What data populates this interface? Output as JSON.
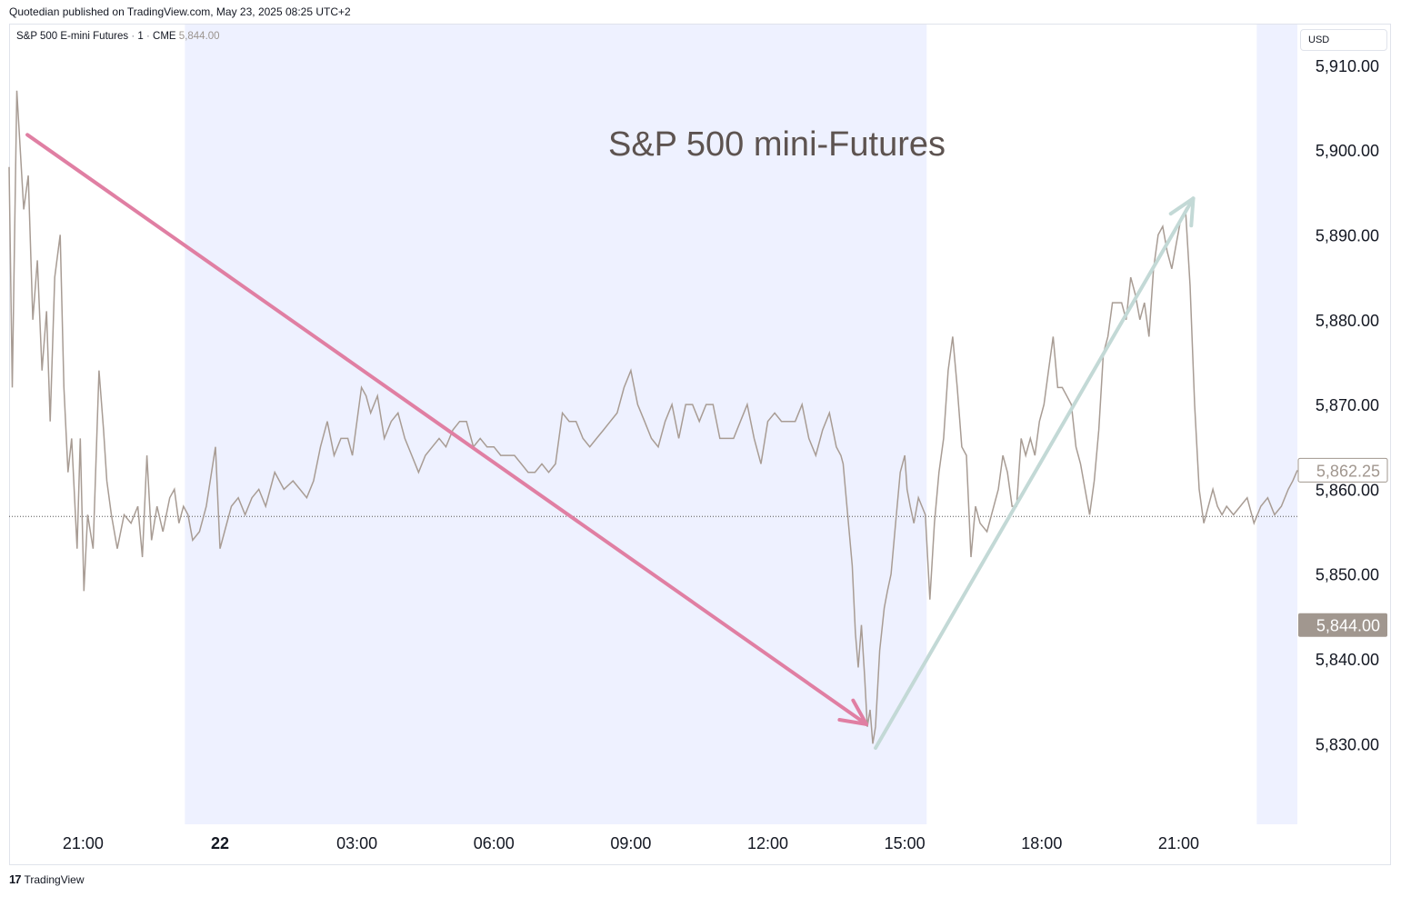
{
  "header": {
    "text": "Quotedian published on TradingView.com, May 23, 2025 08:25 UTC+2"
  },
  "legend": {
    "symbol": "S&P 500 E-mini Futures",
    "interval": "1",
    "exchange": "CME",
    "last": "5,844.00"
  },
  "currency": "USD",
  "footer": {
    "logo": "17",
    "brand": "TradingView"
  },
  "colors": {
    "price_line": "#a89c94",
    "session_shade": "#eef1ff",
    "down_arrow": "#e07fa3",
    "up_arrow": "#c3d9d6",
    "label_last_bg": "#a1978f",
    "annotation_text": "#5d5350"
  },
  "chart_data": {
    "type": "line",
    "title": "S&P 500 mini-Futures",
    "x_ticks": [
      {
        "label": "21:00",
        "x": -3,
        "bold": false
      },
      {
        "label": "22",
        "x": 0,
        "bold": true
      },
      {
        "label": "03:00",
        "x": 3,
        "bold": false
      },
      {
        "label": "06:00",
        "x": 6,
        "bold": false
      },
      {
        "label": "09:00",
        "x": 9,
        "bold": false
      },
      {
        "label": "12:00",
        "x": 12,
        "bold": false
      },
      {
        "label": "15:00",
        "x": 15,
        "bold": false
      },
      {
        "label": "18:00",
        "x": 18,
        "bold": false
      },
      {
        "label": "21:00",
        "x": 21,
        "bold": false
      }
    ],
    "x_range": [
      -4.62,
      23.6
    ],
    "ylim": [
      5820.5,
      5914.8
    ],
    "y_ticks": [
      "5,830.00",
      "5,840.00",
      "5,850.00",
      "5,860.00",
      "5,870.00",
      "5,880.00",
      "5,890.00",
      "5,900.00",
      "5,910.00"
    ],
    "y_tick_values": [
      5830,
      5840,
      5850,
      5860,
      5870,
      5880,
      5890,
      5900,
      5910
    ],
    "sessions_shaded": [
      [
        -0.77,
        15.48
      ],
      [
        22.71,
        23.6
      ]
    ],
    "reference_price": 5856.8,
    "price_labels": [
      {
        "text": "5,862.25",
        "value": 5862.25,
        "style": "outline"
      },
      {
        "text": "5,844.00",
        "value": 5844.0,
        "style": "filled"
      }
    ],
    "series": [
      {
        "values": [
          [
            -4.62,
            5898
          ],
          [
            -4.55,
            5872
          ],
          [
            -4.45,
            5907
          ],
          [
            -4.3,
            5893
          ],
          [
            -4.2,
            5897
          ],
          [
            -4.1,
            5880
          ],
          [
            -4.0,
            5887
          ],
          [
            -3.9,
            5874
          ],
          [
            -3.8,
            5881
          ],
          [
            -3.72,
            5868
          ],
          [
            -3.62,
            5885
          ],
          [
            -3.5,
            5890
          ],
          [
            -3.42,
            5872
          ],
          [
            -3.33,
            5862
          ],
          [
            -3.25,
            5866
          ],
          [
            -3.13,
            5853
          ],
          [
            -3.06,
            5866
          ],
          [
            -2.98,
            5848
          ],
          [
            -2.9,
            5857
          ],
          [
            -2.78,
            5853
          ],
          [
            -2.65,
            5874
          ],
          [
            -2.55,
            5867
          ],
          [
            -2.48,
            5861
          ],
          [
            -2.38,
            5857
          ],
          [
            -2.25,
            5853
          ],
          [
            -2.1,
            5857
          ],
          [
            -1.95,
            5856
          ],
          [
            -1.8,
            5858
          ],
          [
            -1.7,
            5852
          ],
          [
            -1.6,
            5864
          ],
          [
            -1.5,
            5854
          ],
          [
            -1.38,
            5858
          ],
          [
            -1.25,
            5855
          ],
          [
            -1.1,
            5859
          ],
          [
            -1.0,
            5860
          ],
          [
            -0.9,
            5856
          ],
          [
            -0.8,
            5858
          ],
          [
            -0.7,
            5857
          ],
          [
            -0.6,
            5854
          ],
          [
            -0.45,
            5855
          ],
          [
            -0.3,
            5858
          ],
          [
            -0.1,
            5865
          ],
          [
            0.0,
            5853
          ],
          [
            0.1,
            5855
          ],
          [
            0.25,
            5858
          ],
          [
            0.4,
            5859
          ],
          [
            0.55,
            5857
          ],
          [
            0.7,
            5859
          ],
          [
            0.85,
            5860
          ],
          [
            1.0,
            5858
          ],
          [
            1.2,
            5862
          ],
          [
            1.4,
            5860
          ],
          [
            1.6,
            5861
          ],
          [
            1.75,
            5860
          ],
          [
            1.9,
            5859
          ],
          [
            2.05,
            5861
          ],
          [
            2.2,
            5865
          ],
          [
            2.35,
            5868
          ],
          [
            2.5,
            5864
          ],
          [
            2.65,
            5866
          ],
          [
            2.8,
            5866
          ],
          [
            2.9,
            5864
          ],
          [
            3.0,
            5868
          ],
          [
            3.1,
            5872
          ],
          [
            3.2,
            5871
          ],
          [
            3.3,
            5869
          ],
          [
            3.45,
            5871
          ],
          [
            3.6,
            5866
          ],
          [
            3.75,
            5868
          ],
          [
            3.9,
            5869
          ],
          [
            4.05,
            5866
          ],
          [
            4.2,
            5864
          ],
          [
            4.35,
            5862
          ],
          [
            4.5,
            5864
          ],
          [
            4.65,
            5865
          ],
          [
            4.8,
            5866
          ],
          [
            4.95,
            5865
          ],
          [
            5.1,
            5867
          ],
          [
            5.25,
            5868
          ],
          [
            5.4,
            5868
          ],
          [
            5.55,
            5865
          ],
          [
            5.7,
            5866
          ],
          [
            5.85,
            5865
          ],
          [
            6.0,
            5865
          ],
          [
            6.15,
            5864
          ],
          [
            6.3,
            5864
          ],
          [
            6.45,
            5864
          ],
          [
            6.6,
            5863
          ],
          [
            6.75,
            5862
          ],
          [
            6.9,
            5862
          ],
          [
            7.05,
            5863
          ],
          [
            7.2,
            5862
          ],
          [
            7.35,
            5863
          ],
          [
            7.5,
            5869
          ],
          [
            7.65,
            5868
          ],
          [
            7.8,
            5868
          ],
          [
            7.95,
            5866
          ],
          [
            8.1,
            5865
          ],
          [
            8.25,
            5866
          ],
          [
            8.4,
            5867
          ],
          [
            8.55,
            5868
          ],
          [
            8.7,
            5869
          ],
          [
            8.85,
            5872
          ],
          [
            9.0,
            5874
          ],
          [
            9.15,
            5870
          ],
          [
            9.3,
            5868
          ],
          [
            9.45,
            5866
          ],
          [
            9.6,
            5865
          ],
          [
            9.75,
            5868
          ],
          [
            9.9,
            5870
          ],
          [
            10.05,
            5866
          ],
          [
            10.2,
            5870
          ],
          [
            10.35,
            5870
          ],
          [
            10.5,
            5868
          ],
          [
            10.65,
            5870
          ],
          [
            10.8,
            5870
          ],
          [
            10.95,
            5866
          ],
          [
            11.1,
            5866
          ],
          [
            11.25,
            5866
          ],
          [
            11.4,
            5868
          ],
          [
            11.55,
            5870
          ],
          [
            11.7,
            5866
          ],
          [
            11.85,
            5863
          ],
          [
            12.0,
            5868
          ],
          [
            12.15,
            5869
          ],
          [
            12.3,
            5868
          ],
          [
            12.45,
            5868
          ],
          [
            12.6,
            5868
          ],
          [
            12.75,
            5870
          ],
          [
            12.9,
            5866
          ],
          [
            13.05,
            5864
          ],
          [
            13.2,
            5867
          ],
          [
            13.35,
            5869
          ],
          [
            13.5,
            5865
          ],
          [
            13.6,
            5864
          ],
          [
            13.65,
            5863
          ],
          [
            13.75,
            5857
          ],
          [
            13.85,
            5851
          ],
          [
            13.92,
            5843
          ],
          [
            13.98,
            5839
          ],
          [
            14.05,
            5844
          ],
          [
            14.12,
            5838
          ],
          [
            14.18,
            5832
          ],
          [
            14.24,
            5834
          ],
          [
            14.3,
            5830
          ],
          [
            14.36,
            5832
          ],
          [
            14.45,
            5841
          ],
          [
            14.55,
            5846
          ],
          [
            14.62,
            5848
          ],
          [
            14.7,
            5850
          ],
          [
            14.8,
            5856
          ],
          [
            14.9,
            5862
          ],
          [
            15.0,
            5864
          ],
          [
            15.05,
            5860
          ],
          [
            15.12,
            5858
          ],
          [
            15.2,
            5856
          ],
          [
            15.3,
            5859
          ],
          [
            15.45,
            5857
          ],
          [
            15.55,
            5847
          ],
          [
            15.65,
            5856
          ],
          [
            15.75,
            5862
          ],
          [
            15.85,
            5866
          ],
          [
            15.95,
            5874
          ],
          [
            16.05,
            5878
          ],
          [
            16.15,
            5872
          ],
          [
            16.25,
            5865
          ],
          [
            16.35,
            5864
          ],
          [
            16.45,
            5852
          ],
          [
            16.55,
            5858
          ],
          [
            16.65,
            5856
          ],
          [
            16.8,
            5855
          ],
          [
            16.95,
            5858
          ],
          [
            17.05,
            5860
          ],
          [
            17.15,
            5864
          ],
          [
            17.25,
            5862
          ],
          [
            17.35,
            5858
          ],
          [
            17.45,
            5858
          ],
          [
            17.55,
            5866
          ],
          [
            17.65,
            5864
          ],
          [
            17.75,
            5866
          ],
          [
            17.85,
            5864
          ],
          [
            17.95,
            5868
          ],
          [
            18.05,
            5870
          ],
          [
            18.15,
            5874
          ],
          [
            18.25,
            5878
          ],
          [
            18.35,
            5872
          ],
          [
            18.45,
            5872
          ],
          [
            18.55,
            5871
          ],
          [
            18.65,
            5870
          ],
          [
            18.75,
            5865
          ],
          [
            18.85,
            5863
          ],
          [
            18.95,
            5860
          ],
          [
            19.05,
            5857
          ],
          [
            19.15,
            5861
          ],
          [
            19.25,
            5867
          ],
          [
            19.35,
            5876
          ],
          [
            19.45,
            5878
          ],
          [
            19.55,
            5882
          ],
          [
            19.65,
            5882
          ],
          [
            19.75,
            5882
          ],
          [
            19.85,
            5880
          ],
          [
            19.95,
            5885
          ],
          [
            20.05,
            5883
          ],
          [
            20.15,
            5880
          ],
          [
            20.25,
            5882
          ],
          [
            20.35,
            5878
          ],
          [
            20.45,
            5886
          ],
          [
            20.55,
            5890
          ],
          [
            20.65,
            5891
          ],
          [
            20.75,
            5888
          ],
          [
            20.85,
            5886
          ],
          [
            20.95,
            5889
          ],
          [
            21.05,
            5892
          ],
          [
            21.15,
            5893
          ],
          [
            21.25,
            5884
          ],
          [
            21.35,
            5870
          ],
          [
            21.45,
            5860
          ],
          [
            21.55,
            5856
          ],
          [
            21.65,
            5858
          ],
          [
            21.75,
            5860
          ],
          [
            21.85,
            5858
          ],
          [
            21.95,
            5857
          ],
          [
            22.05,
            5858
          ],
          [
            22.2,
            5857
          ],
          [
            22.35,
            5858
          ],
          [
            22.5,
            5859
          ],
          [
            22.65,
            5856
          ],
          [
            22.8,
            5858
          ],
          [
            22.95,
            5859
          ],
          [
            23.1,
            5857
          ],
          [
            23.25,
            5858
          ],
          [
            23.4,
            5860
          ],
          [
            23.5,
            5861
          ],
          [
            23.6,
            5862.25
          ]
        ]
      }
    ],
    "annotations": [
      {
        "type": "arrow",
        "color_key": "down_arrow",
        "from": [
          -4.22,
          5901.8
        ],
        "to": [
          14.16,
          5832.3
        ]
      },
      {
        "type": "arrow",
        "color_key": "up_arrow",
        "from": [
          14.36,
          5829.5
        ],
        "to": [
          21.32,
          5894.3
        ]
      }
    ]
  }
}
